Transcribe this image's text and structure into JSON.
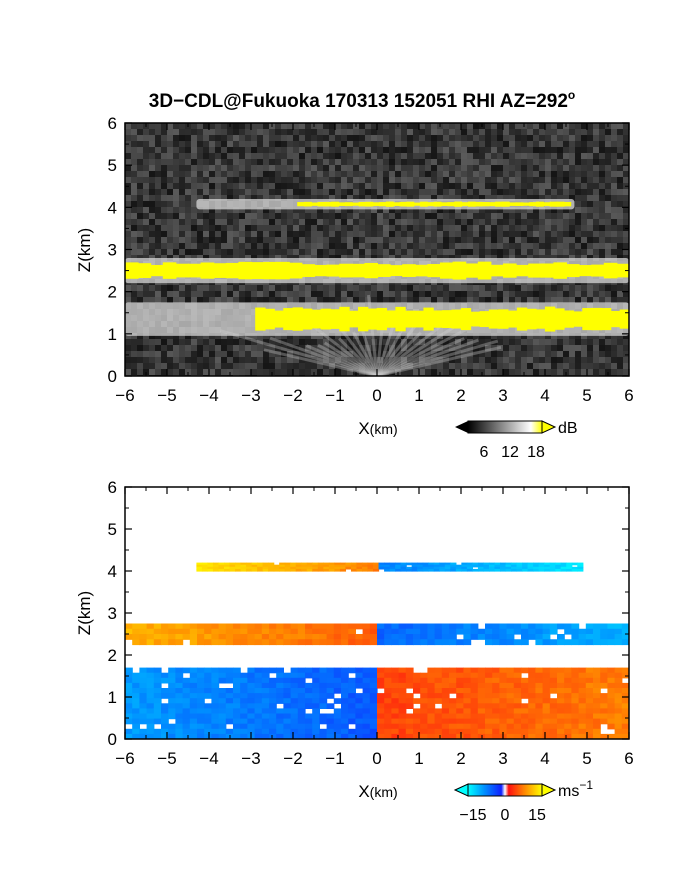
{
  "title_main": "3D−CDL@Fukuoka 170313 152051 RHI AZ=292",
  "title_deg": "o",
  "chart_data": [
    {
      "type": "heatmap",
      "name": "Backscatter",
      "xlabel_main": "X",
      "xlabel_unit": "(km)",
      "ylabel": "Z(km)",
      "xlim": [
        -6,
        6
      ],
      "ylim": [
        0,
        6
      ],
      "xticks": [
        "−6",
        "−5",
        "−4",
        "−3",
        "−2",
        "−1",
        "0",
        "1",
        "2",
        "3",
        "4",
        "5",
        "6"
      ],
      "yticks": [
        "0",
        "1",
        "2",
        "3",
        "4",
        "5",
        "6"
      ],
      "colorbar": {
        "unit": "dB",
        "ticks": [
          "6",
          "12",
          "18"
        ],
        "range": [
          0,
          20
        ]
      },
      "colors": {
        "background": "#3a3a3a",
        "layer": "#d8d8d8",
        "saturated": "#ffff00"
      },
      "layers": [
        {
          "x": [
            -4.3,
            4.7
          ],
          "z": [
            4.0,
            4.15
          ],
          "saturated_x": [
            -1.9,
            4.6
          ]
        },
        {
          "x": [
            -6,
            6
          ],
          "z": [
            2.25,
            2.75
          ],
          "saturated_x": [
            -6,
            6
          ]
        },
        {
          "x": [
            -6,
            6
          ],
          "z": [
            1.0,
            1.7
          ],
          "saturated_x": [
            -2.9,
            6
          ]
        }
      ]
    },
    {
      "type": "heatmap",
      "name": "Doppler velocity",
      "xlabel_main": "X",
      "xlabel_unit": "(km)",
      "ylabel": "Z(km)",
      "xlim": [
        -6,
        6
      ],
      "ylim": [
        0,
        6
      ],
      "xticks": [
        "−6",
        "−5",
        "−4",
        "−3",
        "−2",
        "−1",
        "0",
        "1",
        "2",
        "3",
        "4",
        "5",
        "6"
      ],
      "yticks": [
        "0",
        "1",
        "2",
        "3",
        "4",
        "5",
        "6"
      ],
      "colorbar": {
        "unit": "ms",
        "unit_sup": "−1",
        "ticks": [
          "−15",
          "0",
          "15"
        ],
        "range": [
          -20,
          20
        ]
      },
      "colors": {
        "negative": "#1040ff",
        "zero": "#ffffff",
        "positive": "#ff2a10"
      },
      "layers": [
        {
          "x": [
            -4.3,
            4.9
          ],
          "z": [
            4.0,
            4.2
          ],
          "velocity_left": 18,
          "velocity_right": -18
        },
        {
          "x": [
            -6,
            6
          ],
          "z": [
            2.25,
            2.75
          ],
          "velocity_left": 14,
          "velocity_right": -14
        },
        {
          "x": [
            -6,
            6
          ],
          "z": [
            0.0,
            1.7
          ],
          "velocity_left": -12,
          "velocity_right": 10
        }
      ]
    }
  ]
}
